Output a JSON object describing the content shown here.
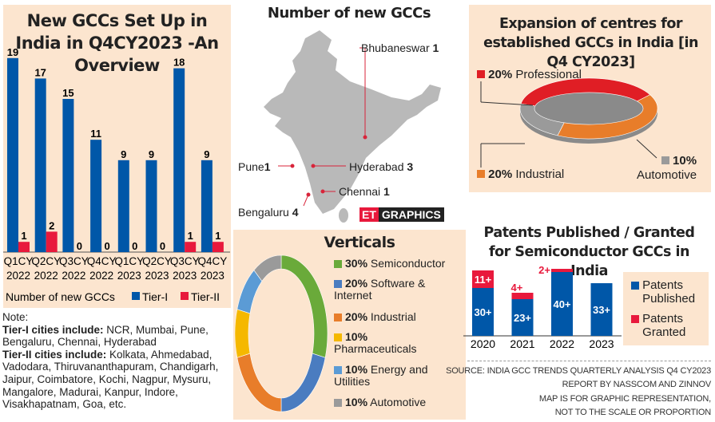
{
  "colors": {
    "tier1": "#0057a8",
    "tier2": "#e8193c",
    "panel": "#fce5cf"
  },
  "chart_data": [
    {
      "type": "bar",
      "title": "New GCCs Set Up in India in Q4CY2023 -An Overview",
      "categories": [
        [
          "Q1CY",
          "2022"
        ],
        [
          "Q2CY",
          "2022"
        ],
        [
          "Q3CY",
          "2022"
        ],
        [
          "Q4CY",
          "2022"
        ],
        [
          "Q1CY",
          "2023"
        ],
        [
          "Q2CY",
          "2023"
        ],
        [
          "Q3CY",
          "2023"
        ],
        [
          "Q4CY",
          "2023"
        ]
      ],
      "series": [
        {
          "name": "Tier-I",
          "values": [
            19,
            17,
            15,
            11,
            9,
            9,
            18,
            9
          ]
        },
        {
          "name": "Tier-II",
          "values": [
            1,
            2,
            0,
            0,
            0,
            0,
            1,
            1
          ]
        }
      ],
      "legend_title": "Number of new GCCs",
      "ylim": [
        0,
        20
      ]
    },
    {
      "type": "pie",
      "title": "Verticals",
      "slices": [
        {
          "pct": "30%",
          "label": "Semiconductor",
          "value": 30,
          "color": "#6aaa3a"
        },
        {
          "pct": "20%",
          "label": "Software & Internet",
          "value": 20,
          "color": "#4a7cc0"
        },
        {
          "pct": "20%",
          "label": "Industrial",
          "value": 20,
          "color": "#e87d2a"
        },
        {
          "pct": "10%",
          "label": "Pharmaceuticals",
          "value": 10,
          "color": "#f5b800"
        },
        {
          "pct": "10%",
          "label": "Energy and Utilities",
          "value": 10,
          "color": "#5b9bd5"
        },
        {
          "pct": "10%",
          "label": "Automotive",
          "value": 10,
          "color": "#9a9a9a"
        }
      ]
    },
    {
      "type": "pie",
      "title": "Expansion of centres for established GCCs in India [in Q4 CY2023]",
      "slices": [
        {
          "pct": "20%",
          "label": "Professional",
          "value": 20,
          "color": "#e01e25"
        },
        {
          "pct": "20%",
          "label": "Industrial",
          "value": 20,
          "color": "#e87d2a"
        },
        {
          "pct": "10%",
          "label": "Automotive",
          "value": 10,
          "color": "#9a9a9a"
        }
      ]
    },
    {
      "type": "bar",
      "title": "Patents Published / Granted for Semiconductor GCCs in India",
      "categories": [
        "2020",
        "2021",
        "2022",
        "2023"
      ],
      "series": [
        {
          "name": "Patents Published",
          "values": [
            30,
            23,
            40,
            33
          ],
          "labels": [
            "30+",
            "23+",
            "40+",
            "33+"
          ]
        },
        {
          "name": "Patents Granted",
          "values": [
            11,
            4,
            2,
            0
          ],
          "labels": [
            "11+",
            "4+",
            "2+",
            ""
          ]
        }
      ]
    }
  ],
  "map": {
    "title": "Number of new GCCs",
    "cities": [
      {
        "name": "Bhubaneswar",
        "count": "1"
      },
      {
        "name": "Hyderabad",
        "count": "3"
      },
      {
        "name": "Pune",
        "count": "1"
      },
      {
        "name": "Chennai",
        "count": "1"
      },
      {
        "name": "Bengaluru",
        "count": "4"
      }
    ],
    "badge_et": "ET",
    "badge_graphics": "GRAPHICS"
  },
  "notes": {
    "heading": "Note:",
    "tier1_label": "Tier-I cities include:",
    "tier1_text": " NCR, Mumbai, Pune, Bengaluru, Chennai, Hyderabad",
    "tier2_label": "Tier-II cities include:",
    "tier2_text": " Kolkata, Ahmedabad, Vadodara, Thiruvananthapuram, Chandigarh, Jaipur, Coimbatore, Kochi, Nagpur, Mysuru, Mangalore, Madurai, Kanpur, Indore, Visakhapatnam, Goa, etc."
  },
  "source": [
    "SOURCE: INDIA GCC TRENDS QUARTERLY ANALYSIS Q4 CY2023",
    "REPORT BY NASSCOM AND ZINNOV",
    "MAP IS FOR GRAPHIC REPRESENTATION,",
    "NOT TO THE SCALE OR PROPORTION"
  ]
}
